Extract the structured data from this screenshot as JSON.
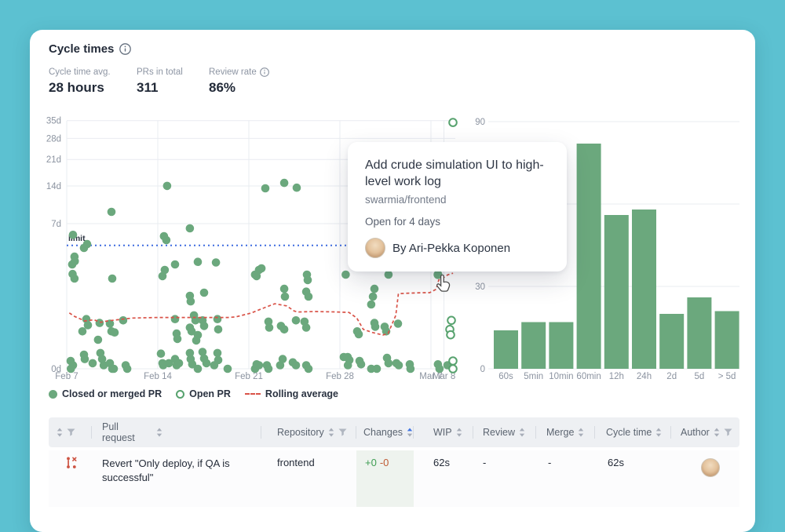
{
  "colors": {
    "background": "#5cc1d1",
    "card": "#ffffff",
    "green": "#6ba87d",
    "open_stroke": "#57a26e",
    "rolling_red": "#d95348",
    "limit_blue": "#3e6ce0",
    "sorted_blue": "#3f74e3",
    "grid": "#e9ecf1",
    "axis_text": "#8b93a0",
    "header_bg": "#eef0f3",
    "changes_tint": "#eef3ee",
    "additions_green": "#3f9e53",
    "deletions_red": "#bf5b34",
    "revert_icon_red": "#cd5342"
  },
  "header": {
    "title": "Cycle times"
  },
  "stats": [
    {
      "label": "Cycle time avg.",
      "value": "28 hours"
    },
    {
      "label": "PRs in total",
      "value": "311"
    },
    {
      "label": "Review rate",
      "value": "86%"
    }
  ],
  "chart_data": [
    {
      "type": "scatter",
      "title": "Cycle time per pull request",
      "x_ticks": [
        {
          "label": "Feb 7",
          "day": 0
        },
        {
          "label": "Feb 14",
          "day": 7
        },
        {
          "label": "Feb 21",
          "day": 14
        },
        {
          "label": "Feb 28",
          "day": 21
        },
        {
          "label": "Mar 7",
          "day": 28
        },
        {
          "label": "Mar 8",
          "day": 29
        }
      ],
      "y_ticks": [
        {
          "label": "35d",
          "days": 35
        },
        {
          "label": "28d",
          "days": 28
        },
        {
          "label": "21d",
          "days": 21
        },
        {
          "label": "14d",
          "days": 14
        },
        {
          "label": "7d",
          "days": 7
        },
        {
          "label": "0d",
          "days": 0
        }
      ],
      "grid_days": [
        0,
        7,
        14,
        21,
        28,
        29
      ],
      "limit": {
        "label": "limit",
        "value_days": 4.3
      },
      "points_closed": [
        [
          0.48,
          5.5
        ],
        [
          0.6,
          3.23
        ],
        [
          1.33,
          4.04
        ],
        [
          1.57,
          4.44
        ],
        [
          3.44,
          8.85
        ],
        [
          7.72,
          14.0
        ],
        [
          7.48,
          5.34
        ],
        [
          7.66,
          4.88
        ],
        [
          9.47,
          6.34
        ],
        [
          15.27,
          13.45
        ],
        [
          16.72,
          14.7
        ],
        [
          17.68,
          13.6
        ],
        [
          0.42,
          2.6
        ],
        [
          0.45,
          1.95
        ],
        [
          0.6,
          1.68
        ],
        [
          0.62,
          2.85
        ],
        [
          3.5,
          1.68
        ],
        [
          7.36,
          1.82
        ],
        [
          7.54,
          2.21
        ],
        [
          8.33,
          2.6
        ],
        [
          9.47,
          0.89
        ],
        [
          9.53,
          0.7
        ],
        [
          10.08,
          2.8
        ],
        [
          10.56,
          1.01
        ],
        [
          11.47,
          2.75
        ],
        [
          14.6,
          1.82
        ],
        [
          14.78,
          2.21
        ],
        [
          1.51,
          0.28
        ],
        [
          1.63,
          0.19
        ],
        [
          1.21,
          0.12
        ],
        [
          2.53,
          0.22
        ],
        [
          2.41,
          0.056
        ],
        [
          3.32,
          0.21
        ],
        [
          3.44,
          0.12
        ],
        [
          3.68,
          0.11
        ],
        [
          4.34,
          0.26
        ],
        [
          8.33,
          0.28
        ],
        [
          8.45,
          0.1
        ],
        [
          8.51,
          0.061
        ],
        [
          9.47,
          0.16
        ],
        [
          9.6,
          0.12
        ],
        [
          9.78,
          0.35
        ],
        [
          9.9,
          0.26
        ],
        [
          10.08,
          0.088
        ],
        [
          9.96,
          0.052
        ],
        [
          10.44,
          0.26
        ],
        [
          10.56,
          0.18
        ],
        [
          11.59,
          0.28
        ],
        [
          11.65,
          0.14
        ],
        [
          14.48,
          1.91
        ],
        [
          14.97,
          2.32
        ],
        [
          16.72,
          1.17
        ],
        [
          16.78,
          0.86
        ],
        [
          18.47,
          1.91
        ],
        [
          18.53,
          1.6
        ],
        [
          18.41,
          1.05
        ],
        [
          18.59,
          0.86
        ],
        [
          21.45,
          1.91
        ],
        [
          15.51,
          0.24
        ],
        [
          15.57,
          0.16
        ],
        [
          16.47,
          0.18
        ],
        [
          16.72,
          0.14
        ],
        [
          17.62,
          0.26
        ],
        [
          18.28,
          0.24
        ],
        [
          18.41,
          0.16
        ],
        [
          23.66,
          1.17
        ],
        [
          23.54,
          0.86
        ],
        [
          23.41,
          0.61
        ],
        [
          24.74,
          1.91
        ],
        [
          22.33,
          0.12
        ],
        [
          22.45,
          0.094
        ],
        [
          23.66,
          0.22
        ],
        [
          23.72,
          0.17
        ],
        [
          24.44,
          0.17
        ],
        [
          24.56,
          0.12
        ],
        [
          25.47,
          0.21
        ],
        [
          0.3,
          0.0011
        ],
        [
          0.48,
          0.0001
        ],
        [
          0.32,
          0
        ],
        [
          1.33,
          0.0065
        ],
        [
          1.39,
          0.0021
        ],
        [
          1.99,
          0.0004
        ],
        [
          2.59,
          0.009
        ],
        [
          2.72,
          0.0021
        ],
        [
          2.84,
          0.0001
        ],
        [
          3.32,
          0.0004
        ],
        [
          3.5,
          0
        ],
        [
          3.62,
          0
        ],
        [
          4.53,
          0.0001
        ],
        [
          4.65,
          0
        ],
        [
          7.24,
          0.008
        ],
        [
          7.36,
          0.0004
        ],
        [
          7.42,
          0.0001
        ],
        [
          7.85,
          0.0004
        ],
        [
          8.33,
          0.0021
        ],
        [
          8.45,
          0.0001
        ],
        [
          8.63,
          0.0004
        ],
        [
          9.47,
          0.009
        ],
        [
          9.53,
          0.0021
        ],
        [
          9.65,
          0.0002
        ],
        [
          10.08,
          0
        ],
        [
          10.44,
          0.011
        ],
        [
          10.56,
          0.0025
        ],
        [
          10.74,
          0.0004
        ],
        [
          11.34,
          0.0001
        ],
        [
          11.59,
          0.009
        ],
        [
          11.65,
          0.0015
        ],
        [
          12.37,
          0
        ],
        [
          14.48,
          0
        ],
        [
          14.6,
          0.0002
        ],
        [
          14.78,
          0.0001
        ],
        [
          15.39,
          0.0001
        ],
        [
          15.51,
          0
        ],
        [
          16.41,
          0.0001
        ],
        [
          16.6,
          0.0021
        ],
        [
          17.38,
          0.0006
        ],
        [
          17.62,
          0.0001
        ],
        [
          18.41,
          0.0001
        ],
        [
          18.59,
          0
        ],
        [
          21.3,
          0.0037
        ],
        [
          21.6,
          0.0037
        ],
        [
          21.73,
          0.0015
        ],
        [
          21.62,
          0.0001
        ],
        [
          22.51,
          0.0011
        ],
        [
          22.63,
          0.0002
        ],
        [
          23.41,
          0
        ],
        [
          23.84,
          0
        ],
        [
          24.62,
          0.003
        ],
        [
          24.74,
          0.0004
        ],
        [
          25.35,
          0.0004
        ],
        [
          25.53,
          0.0001
        ],
        [
          26.37,
          0.0002
        ],
        [
          26.43,
          0
        ],
        [
          28.54,
          0.0002
        ],
        [
          28.66,
          0
        ],
        [
          29.27,
          0.0001
        ]
      ],
      "points_open": [
        [
          29.69,
          34.2
        ],
        [
          29.57,
          0.26
        ],
        [
          29.45,
          0.14
        ],
        [
          29.51,
          0.09
        ],
        [
          29.69,
          0.0011
        ],
        [
          29.69,
          0
        ]
      ],
      "hovered_point": [
        28.54,
        1.91
      ],
      "rolling_average": [
        [
          0.2,
          0.4
        ],
        [
          0.6,
          0.33
        ],
        [
          1.4,
          0.25
        ],
        [
          2.1,
          0.27
        ],
        [
          2.6,
          0.23
        ],
        [
          3.1,
          0.25
        ],
        [
          3.9,
          0.27
        ],
        [
          4.3,
          0.28
        ],
        [
          5.1,
          0.3
        ],
        [
          7.0,
          0.31
        ],
        [
          8.8,
          0.31
        ],
        [
          10.6,
          0.31
        ],
        [
          12.4,
          0.31
        ],
        [
          13.0,
          0.32
        ],
        [
          14.2,
          0.4
        ],
        [
          15.4,
          0.55
        ],
        [
          16.0,
          0.63
        ],
        [
          16.9,
          0.57
        ],
        [
          17.5,
          0.44
        ],
        [
          17.8,
          0.42
        ],
        [
          19.0,
          0.43
        ],
        [
          20.8,
          0.42
        ],
        [
          21.7,
          0.41
        ],
        [
          22.3,
          0.3
        ],
        [
          22.8,
          0.14
        ],
        [
          23.5,
          0.11
        ],
        [
          24.3,
          0.088
        ],
        [
          24.7,
          0.1
        ],
        [
          25.3,
          0.35
        ],
        [
          25.5,
          0.97
        ],
        [
          26.3,
          0.99
        ],
        [
          27.5,
          1.01
        ],
        [
          27.9,
          1.01
        ],
        [
          28.4,
          1.15
        ],
        [
          28.6,
          1.6
        ],
        [
          28.9,
          1.7
        ],
        [
          29.3,
          1.9
        ],
        [
          29.7,
          2.0
        ]
      ]
    },
    {
      "type": "bar",
      "title": "Cycle time distribution",
      "categories": [
        "60s",
        "5min",
        "10min",
        "60min",
        "12h",
        "24h",
        "2d",
        "5d",
        "> 5d"
      ],
      "values": [
        14,
        17,
        17,
        82,
        56,
        58,
        20,
        26,
        21
      ],
      "y_ticks": [
        0,
        30,
        60,
        90
      ],
      "ylim": [
        0,
        90
      ],
      "xlabel": "",
      "ylabel": ""
    }
  ],
  "tooltip": {
    "title": "Add crude simulation UI to high-level work log",
    "repository": "swarmia/frontend",
    "status": "Open for 4 days",
    "author": "By Ari-Pekka Koponen",
    "author_avatar": "ari-pekka-avatar"
  },
  "legend": [
    {
      "label": "Closed or merged PR",
      "swatch": "filled"
    },
    {
      "label": "Open PR",
      "swatch": "open"
    },
    {
      "label": "Rolling average",
      "swatch": "dashed"
    }
  ],
  "table": {
    "columns": [
      {
        "label": "",
        "sort": true,
        "filter": true
      },
      {
        "label": "Pull request",
        "sort": true
      },
      {
        "label": "Repository",
        "sort": true,
        "filter": true
      },
      {
        "label": "Changes",
        "sort": true,
        "sorted": "asc"
      },
      {
        "label": "WIP",
        "sort": true
      },
      {
        "label": "Review",
        "sort": true
      },
      {
        "label": "Merge",
        "sort": true
      },
      {
        "label": "Cycle time",
        "sort": true
      },
      {
        "label": "Author",
        "sort": true,
        "filter": true
      }
    ],
    "rows": [
      {
        "pr_icon": "revert-pr-icon",
        "title": "Revert \"Only deploy, if QA is successful\"",
        "repository": "frontend",
        "additions": "+0",
        "deletions": "-0",
        "wip": "62s",
        "review": "-",
        "merge": "-",
        "cycle_time": "62s",
        "author_avatar": "ari-pekka-avatar"
      }
    ]
  }
}
